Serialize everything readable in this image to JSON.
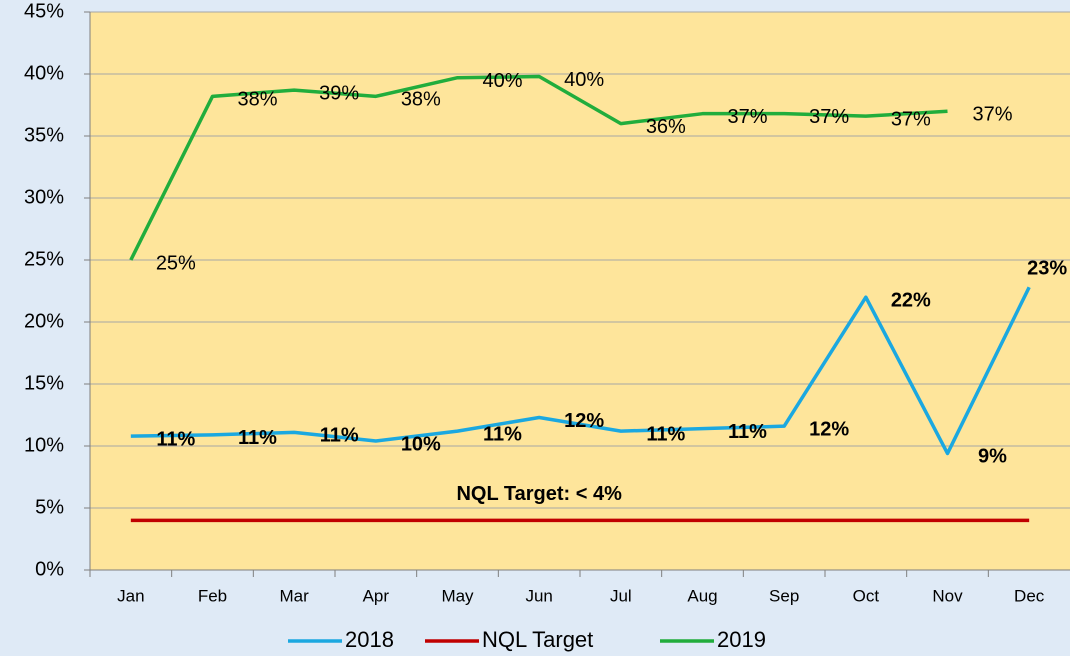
{
  "chart_data": {
    "type": "line",
    "categories": [
      "Jan",
      "Feb",
      "Mar",
      "Apr",
      "May",
      "Jun",
      "Jul",
      "Aug",
      "Sep",
      "Oct",
      "Nov",
      "Dec"
    ],
    "series": [
      {
        "name": "2018",
        "color": "#1ba8e0",
        "values": [
          10.8,
          10.9,
          11.1,
          10.4,
          11.2,
          12.3,
          11.2,
          11.4,
          11.6,
          22.0,
          9.4,
          22.8
        ],
        "value_labels": [
          "11%",
          "11%",
          "11%",
          "10%",
          "11%",
          "12%",
          "11%",
          "11%",
          "12%",
          "22%",
          "9%",
          "23%"
        ],
        "bold_labels": true
      },
      {
        "name": "NQL Target",
        "color": "#c00000",
        "values": [
          4,
          4,
          4,
          4,
          4,
          4,
          4,
          4,
          4,
          4,
          4,
          4
        ]
      },
      {
        "name": "2019",
        "color": "#21ad3c",
        "values": [
          25.0,
          38.2,
          38.7,
          38.2,
          39.7,
          39.8,
          36.0,
          36.8,
          36.8,
          36.6,
          37.0,
          null
        ],
        "value_labels": [
          "25%",
          "38%",
          "39%",
          "38%",
          "40%",
          "40%",
          "36%",
          "37%",
          "37%",
          "37%",
          "37%",
          null
        ],
        "bold_labels": false
      }
    ],
    "annotations": [
      {
        "text": "NQL Target: < 4%",
        "x": "Jun",
        "y": 6
      }
    ],
    "ylim": [
      0,
      45
    ],
    "yticks": [
      {
        "value": 0,
        "label": "0%"
      },
      {
        "value": 5,
        "label": "5%"
      },
      {
        "value": 10,
        "label": "10%"
      },
      {
        "value": 15,
        "label": "15%"
      },
      {
        "value": 20,
        "label": "20%"
      },
      {
        "value": 25,
        "label": "25%"
      },
      {
        "value": 30,
        "label": "30%"
      },
      {
        "value": 35,
        "label": "35%"
      },
      {
        "value": 40,
        "label": "40%"
      },
      {
        "value": 45,
        "label": "45%"
      }
    ],
    "grid": true,
    "legend": "bottom"
  }
}
